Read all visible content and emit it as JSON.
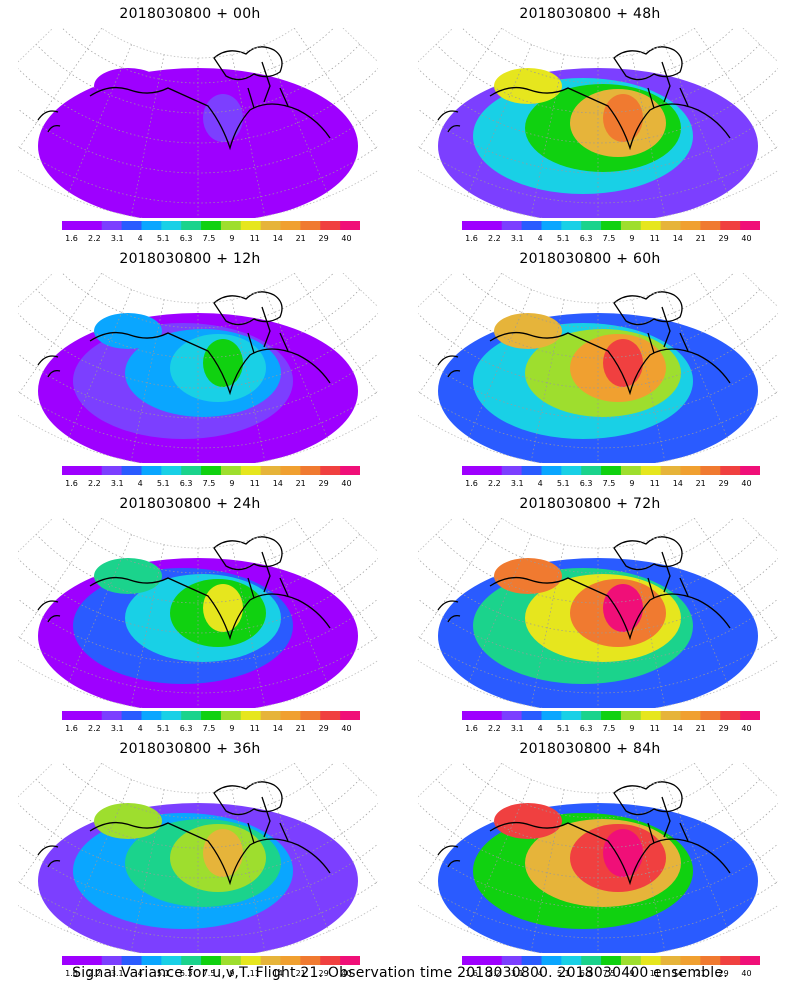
{
  "panels": [
    {
      "title": "2018030800 + 00h",
      "level": 0.0
    },
    {
      "title": "2018030800 + 48h",
      "level": 0.66
    },
    {
      "title": "2018030800 + 12h",
      "level": 0.3
    },
    {
      "title": "2018030800 + 60h",
      "level": 0.75
    },
    {
      "title": "2018030800 + 24h",
      "level": 0.45
    },
    {
      "title": "2018030800 + 72h",
      "level": 0.85
    },
    {
      "title": "2018030800 + 36h",
      "level": 0.55
    },
    {
      "title": "2018030800 + 84h",
      "level": 0.95
    }
  ],
  "colorbar": {
    "labels": [
      "1.6",
      "2.2",
      "3.1",
      "4",
      "5.1",
      "6.3",
      "7.5",
      "9",
      "11",
      "14",
      "21",
      "29",
      "40"
    ],
    "colors": [
      "#9e00ff",
      "#9e00ff",
      "#7c3fff",
      "#2a5bff",
      "#0aa6ff",
      "#19d0e6",
      "#1bd38c",
      "#10d110",
      "#9ede2e",
      "#e6e61e",
      "#e6b43a",
      "#f0a030",
      "#f07a30",
      "#f04040",
      "#f00f78"
    ]
  },
  "footer": "Signal Variance for u,v,T. Flight 21. Observation time 2018030800. 2018030400 ensemble."
}
